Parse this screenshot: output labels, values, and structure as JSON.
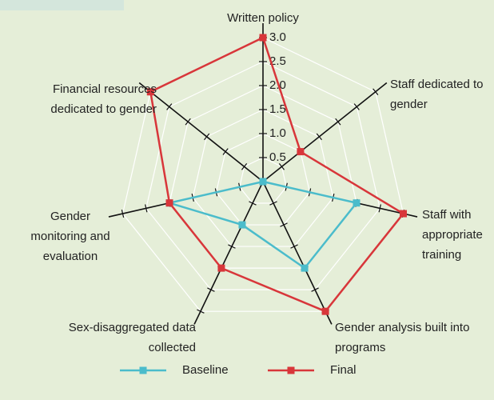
{
  "chart_data": {
    "type": "radar",
    "categories": [
      "Written policy",
      "Staff dedicated to gender",
      "Staff with appropriate training",
      "Gender analysis built into programs",
      "Sex-disaggregated data collected",
      "Gender monitoring and evaluation",
      "Financial resources dedicated to gender"
    ],
    "series": [
      {
        "name": "Baseline",
        "color": "#4bbccb",
        "values": [
          0,
          0,
          2,
          2,
          1,
          2,
          0
        ]
      },
      {
        "name": "Final",
        "color": "#d8363a",
        "values": [
          3,
          1,
          3,
          3,
          2,
          2,
          3
        ]
      }
    ],
    "ylim": [
      0,
      3.3
    ],
    "yticks": [
      0.5,
      {
        "value": 1,
        "label": "1.0"
      },
      1.5,
      {
        "value": 2,
        "label": "2.0"
      },
      2.5,
      {
        "value": 3,
        "label": "3.0"
      }
    ],
    "grid": true
  }
}
